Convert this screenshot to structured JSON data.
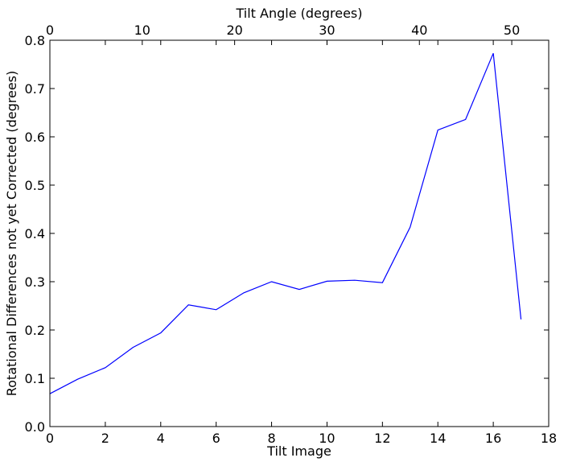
{
  "chart_data": {
    "type": "line",
    "xlabel": "Tilt Image",
    "ylabel": "Rotational Differences not yet Corrected (degrees)",
    "x2label": "Tilt Angle (degrees)",
    "xlim": [
      0,
      18
    ],
    "ylim": [
      0,
      0.8
    ],
    "x2lim": [
      0,
      54
    ],
    "xticks": [
      "0",
      "2",
      "4",
      "6",
      "8",
      "10",
      "12",
      "14",
      "16",
      "18"
    ],
    "yticks": [
      "0.0",
      "0.1",
      "0.2",
      "0.3",
      "0.4",
      "0.5",
      "0.6",
      "0.7",
      "0.8"
    ],
    "x2ticks": [
      "0",
      "10",
      "20",
      "30",
      "40",
      "50"
    ],
    "grid": false,
    "legend": "none",
    "series": [
      {
        "color": "#0000ff",
        "x": [
          0,
          1,
          2,
          3,
          4,
          5,
          6,
          7,
          8,
          9,
          10,
          11,
          12,
          13,
          14,
          15,
          16,
          17
        ],
        "y": [
          0.068,
          0.098,
          0.122,
          0.164,
          0.194,
          0.252,
          0.242,
          0.277,
          0.3,
          0.284,
          0.301,
          0.303,
          0.298,
          0.413,
          0.614,
          0.636,
          0.773,
          0.222
        ]
      }
    ]
  }
}
